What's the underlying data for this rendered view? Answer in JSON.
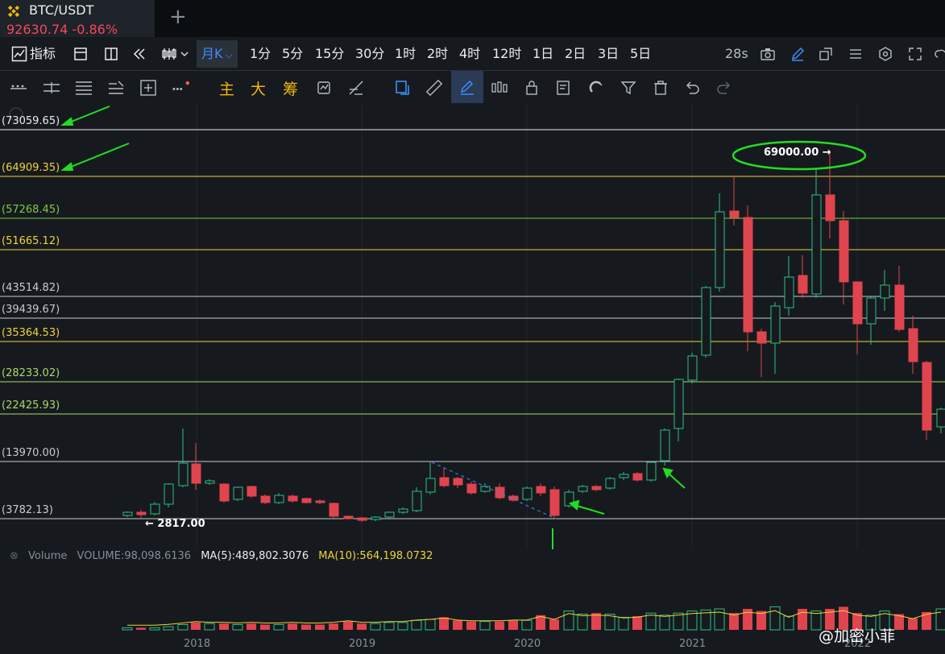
{
  "tab": {
    "symbol": "BTC/USDT",
    "price_change": "92630.74 -0.86%",
    "add_icon": "plus-icon"
  },
  "toolbar1": {
    "indicators_label": "指标",
    "active_interval": "月K",
    "intervals": [
      "1分",
      "5分",
      "15分",
      "30分",
      "1时",
      "2时",
      "4时",
      "12时",
      "1日",
      "2日",
      "3日",
      "5日"
    ],
    "refresh_countdown": "28s"
  },
  "toolbar2": {
    "text_tools": [
      "主",
      "大",
      "筹"
    ]
  },
  "chart": {
    "levels": [
      {
        "label": "(73059.65)",
        "color": "#eaecef"
      },
      {
        "label": "(64909.35)",
        "color": "#f0d23a"
      },
      {
        "label": "(57268.45)",
        "color": "#7fc94a"
      },
      {
        "label": "(51665.12)",
        "color": "#f0d23a"
      },
      {
        "label": "(43514.82)",
        "color": "#c8ccd2"
      },
      {
        "label": "(39439.67)",
        "color": "#c8ccd2"
      },
      {
        "label": "(35364.53)",
        "color": "#f0d23a"
      },
      {
        "label": "(28233.02)",
        "color": "#a8d86a"
      },
      {
        "label": "(22425.93)",
        "color": "#a8d86a"
      },
      {
        "label": "(13970.00)",
        "color": "#c8ccd2"
      },
      {
        "label": "(3782.13)",
        "color": "#c8ccd2"
      }
    ],
    "high_annotation": "69000.00 →",
    "low_annotation": "← 2817.00",
    "up_color": "#2ebd85",
    "down_color": "#e0444e",
    "annotation_color": "#22dd22"
  },
  "volume": {
    "title": "Volume",
    "volume_value": "VOLUME:98,098.6136",
    "ma5": "MA(5):489,802.3076",
    "ma10": "MA(10):564,198.0732"
  },
  "x_axis": [
    "2018",
    "2019",
    "2020",
    "2021",
    "2022"
  ],
  "watermark": "@加密小菲"
}
